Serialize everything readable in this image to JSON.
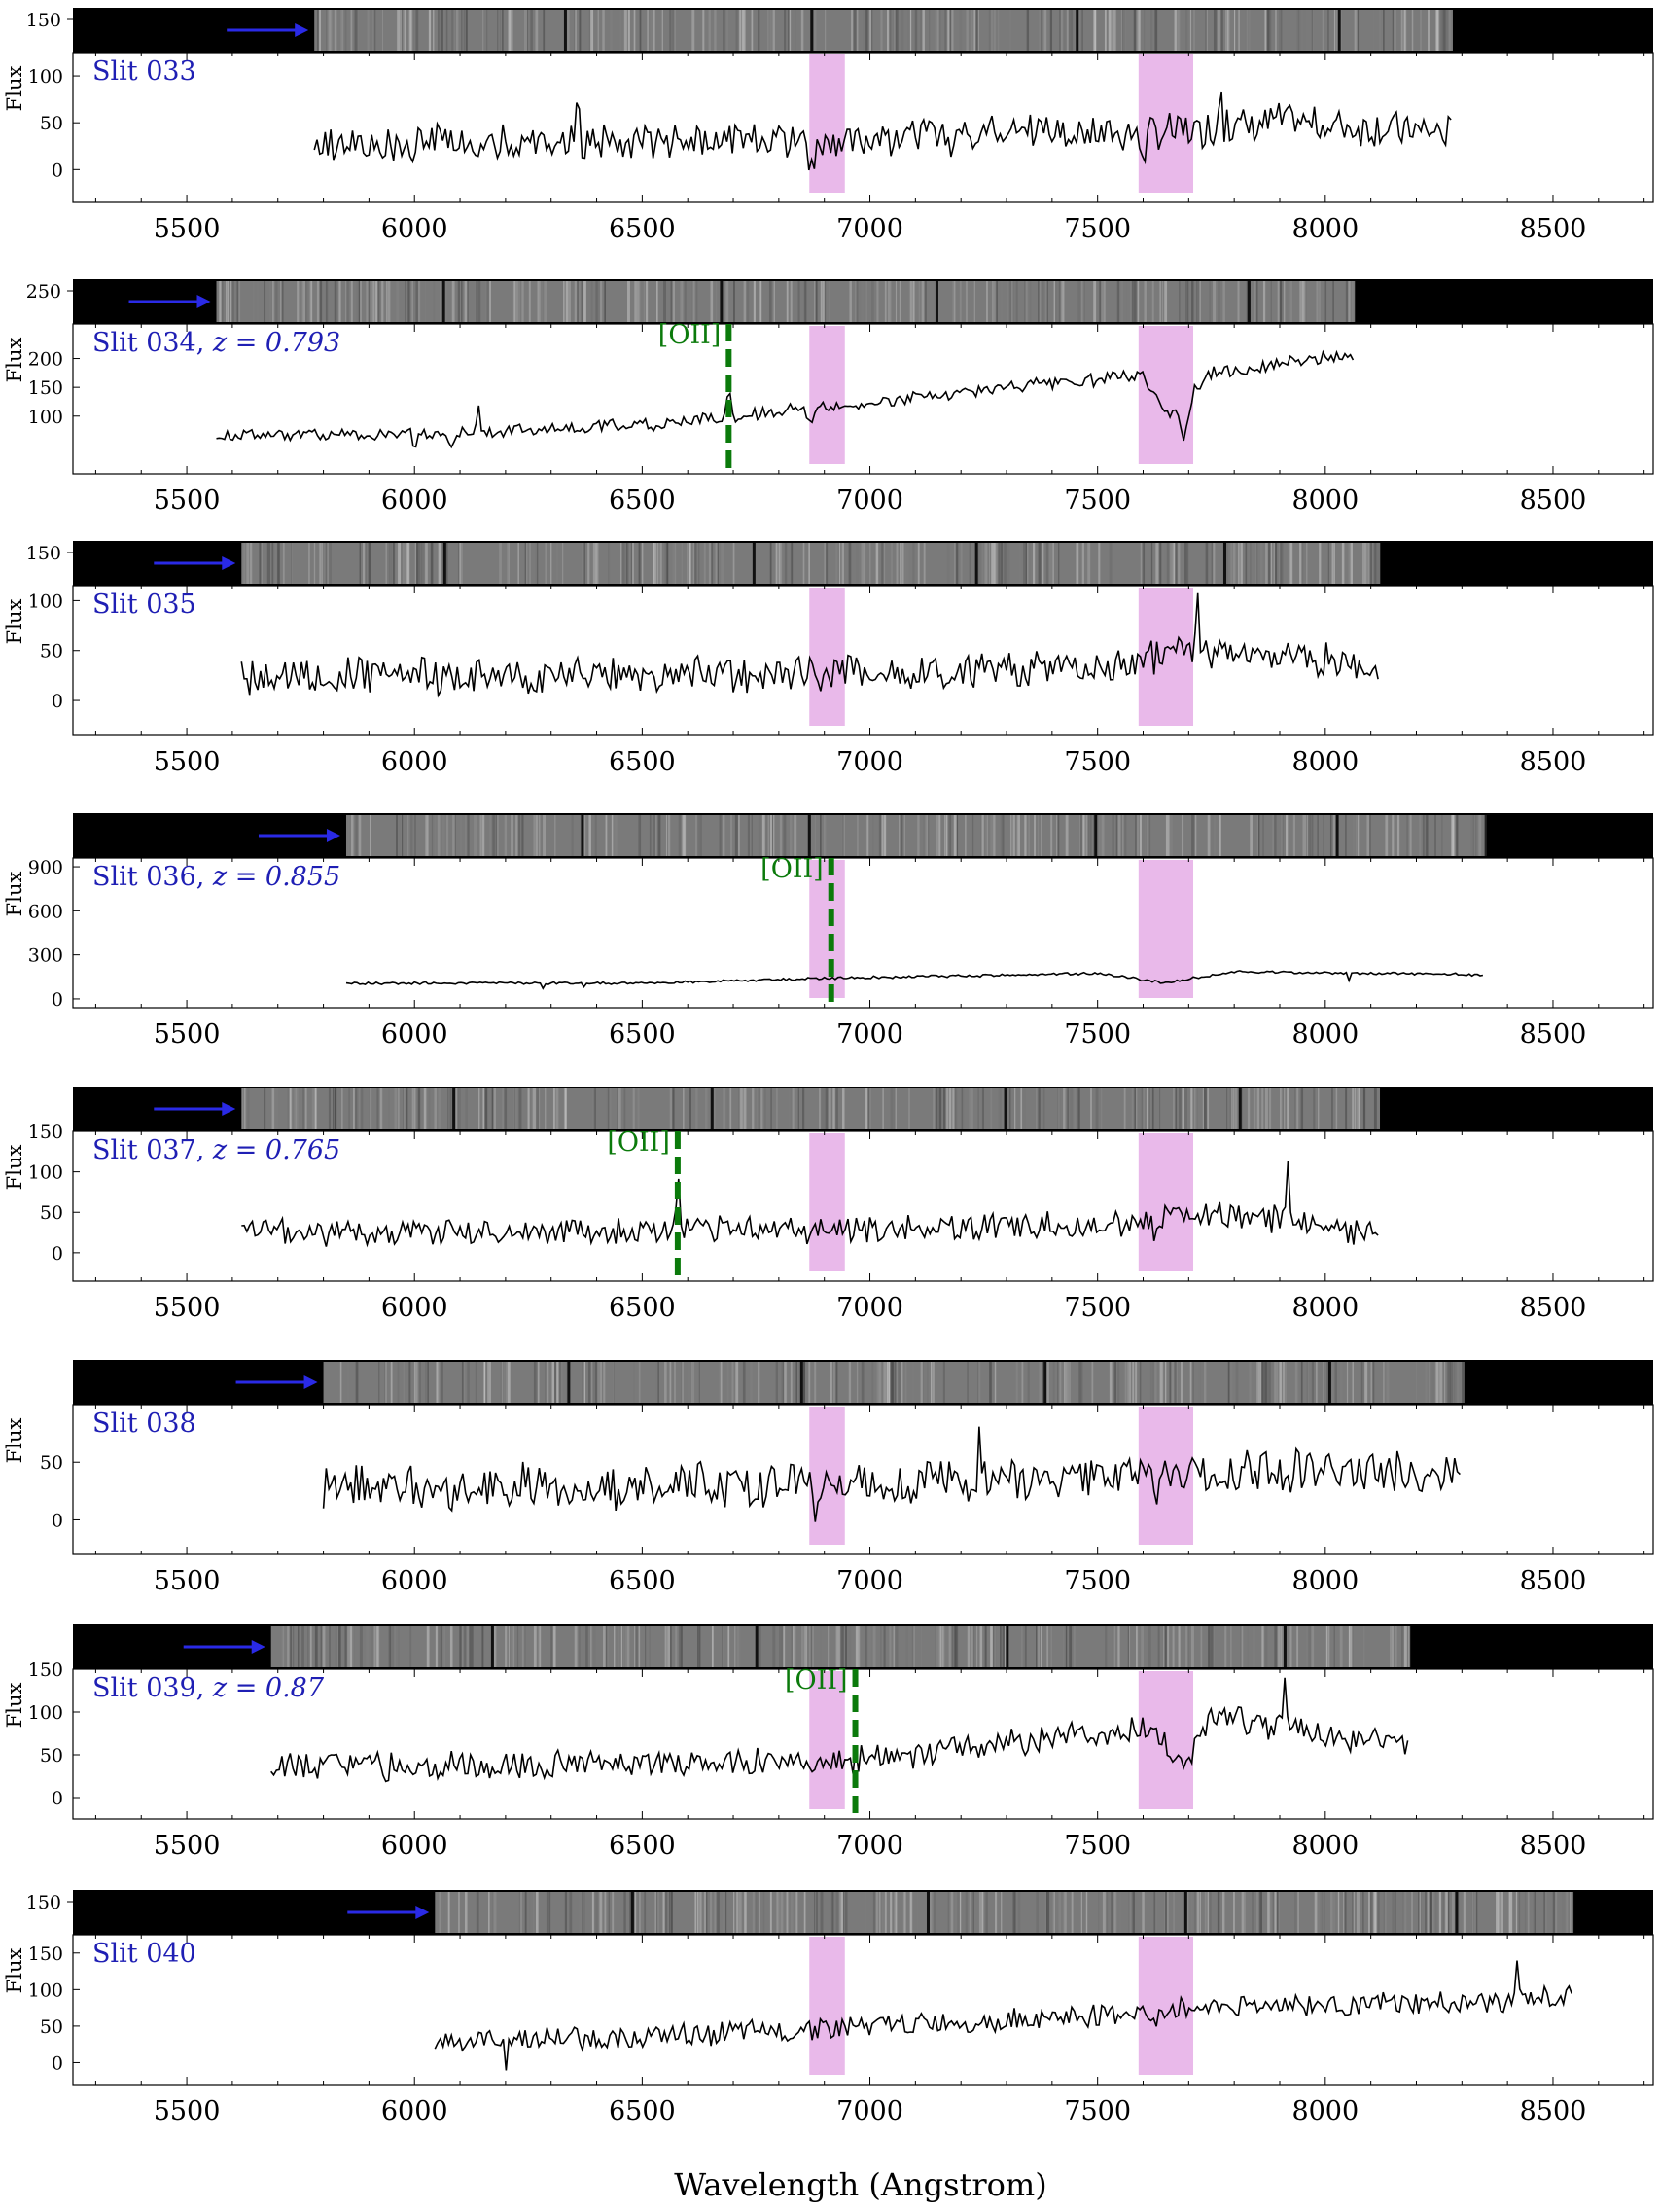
{
  "colors": {
    "slit_label": "#1f1fb4",
    "arrow": "#2a2ae6",
    "line_marker": "#0b7a0b",
    "absorption_band": "#e9b9ea",
    "spectrum": "#000000",
    "strip_background": "#000000",
    "strip_frame": "#7a7a7a"
  },
  "chart_data": {
    "type": "line",
    "xlabel": "Wavelength (Angstrom)",
    "ylabel": "Flux",
    "xlim": [
      5250,
      8720
    ],
    "xticks": [
      "5500",
      "6000",
      "6500",
      "7000",
      "7500",
      "8000",
      "8500"
    ],
    "xtick_values": [
      5500,
      6000,
      6500,
      7000,
      7500,
      8000,
      8500
    ],
    "shaded_bands": [
      [
        6867,
        6945
      ],
      [
        7590,
        7710
      ]
    ],
    "panels": [
      {
        "slit": "033",
        "label": "Slit 033",
        "z_label": "",
        "line_label": "",
        "line_wavelength": null,
        "ylim": [
          -35,
          125
        ],
        "yticks": [
          "0",
          "50",
          "100"
        ],
        "ytick_values": [
          0,
          50,
          100
        ],
        "strip_ticks": [
          "150"
        ],
        "wave_range": [
          5780,
          8280
        ],
        "seed": 33,
        "knots": [
          [
            5780,
            25
          ],
          [
            6300,
            30
          ],
          [
            6900,
            30
          ],
          [
            7400,
            40
          ],
          [
            7650,
            40
          ],
          [
            7900,
            52
          ],
          [
            8280,
            40
          ]
        ],
        "noise": 17,
        "features": [
          [
            6360,
            65,
            8
          ],
          [
            7770,
            55,
            8
          ],
          [
            6870,
            -25,
            15
          ],
          [
            7600,
            -20,
            20
          ],
          [
            5890,
            -30,
            7
          ]
        ]
      },
      {
        "slit": "034",
        "label": "Slit 034, ",
        "z_label": "z = 0.793",
        "line_label": "[OII]",
        "line_wavelength": 6690,
        "ylim": [
          0,
          260
        ],
        "yticks": [
          "100",
          "150",
          "200"
        ],
        "ytick_values": [
          100,
          150,
          200
        ],
        "strip_ticks": [
          "250"
        ],
        "wave_range": [
          5565,
          8065
        ],
        "seed": 34,
        "knots": [
          [
            5565,
            68
          ],
          [
            6000,
            68
          ],
          [
            6500,
            85
          ],
          [
            6900,
            115
          ],
          [
            7300,
            150
          ],
          [
            7600,
            170
          ],
          [
            7650,
            100
          ],
          [
            7750,
            175
          ],
          [
            8050,
            205
          ]
        ],
        "noise": 10,
        "features": [
          [
            6690,
            100,
            5
          ],
          [
            6140,
            50,
            7
          ],
          [
            7690,
            -70,
            20
          ],
          [
            6870,
            -25,
            15
          ],
          [
            6000,
            -25,
            8
          ],
          [
            6080,
            -25,
            8
          ]
        ]
      },
      {
        "slit": "035",
        "label": "Slit 035",
        "z_label": "",
        "line_label": "",
        "line_wavelength": null,
        "ylim": [
          -35,
          115
        ],
        "yticks": [
          "0",
          "50",
          "100"
        ],
        "ytick_values": [
          0,
          50,
          100
        ],
        "strip_ticks": [
          "150"
        ],
        "wave_range": [
          5620,
          8120
        ],
        "seed": 35,
        "knots": [
          [
            5620,
            25
          ],
          [
            6500,
            25
          ],
          [
            7000,
            28
          ],
          [
            7500,
            32
          ],
          [
            7700,
            50
          ],
          [
            8120,
            35
          ]
        ],
        "noise": 16,
        "features": [
          [
            7720,
            55,
            7
          ],
          [
            7500,
            35,
            7
          ],
          [
            6130,
            -25,
            7
          ]
        ]
      },
      {
        "slit": "036",
        "label": "Slit 036, ",
        "z_label": "z = 0.855",
        "line_label": "[OII]",
        "line_wavelength": 6915,
        "ylim": [
          -60,
          960
        ],
        "yticks": [
          "0",
          "300",
          "600",
          "900"
        ],
        "ytick_values": [
          0,
          300,
          600,
          900
        ],
        "strip_ticks": [],
        "wave_range": [
          5850,
          8350
        ],
        "seed": 36,
        "knots": [
          [
            5850,
            105
          ],
          [
            6500,
            108
          ],
          [
            6900,
            140
          ],
          [
            7500,
            175
          ],
          [
            7650,
            110
          ],
          [
            7800,
            185
          ],
          [
            8350,
            165
          ]
        ],
        "noise": 8,
        "features": [
          [
            6915,
            1000,
            3
          ],
          [
            6280,
            -80,
            4
          ],
          [
            6370,
            -60,
            4
          ],
          [
            8050,
            -90,
            4
          ]
        ]
      },
      {
        "slit": "037",
        "label": "Slit 037, ",
        "z_label": "z = 0.765",
        "line_label": "[OII]",
        "line_wavelength": 6578,
        "ylim": [
          -35,
          150
        ],
        "yticks": [
          "0",
          "50",
          "100",
          "150"
        ],
        "ytick_values": [
          0,
          50,
          100,
          150
        ],
        "strip_ticks": [],
        "wave_range": [
          5620,
          8120
        ],
        "seed": 37,
        "knots": [
          [
            5620,
            25
          ],
          [
            6500,
            28
          ],
          [
            7000,
            30
          ],
          [
            7500,
            35
          ],
          [
            7800,
            50
          ],
          [
            8100,
            20
          ]
        ],
        "noise": 15,
        "features": [
          [
            6578,
            110,
            5
          ],
          [
            7920,
            95,
            5
          ],
          [
            6870,
            -20,
            12
          ],
          [
            7630,
            -15,
            15
          ]
        ]
      },
      {
        "slit": "038",
        "label": "Slit 038",
        "z_label": "",
        "line_label": "",
        "line_wavelength": null,
        "ylim": [
          -30,
          100
        ],
        "yticks": [
          "0",
          "50"
        ],
        "ytick_values": [
          0,
          50
        ],
        "strip_ticks": [],
        "wave_range": [
          5800,
          8300
        ],
        "seed": 38,
        "knots": [
          [
            5800,
            28
          ],
          [
            6500,
            30
          ],
          [
            7000,
            32
          ],
          [
            7500,
            38
          ],
          [
            8000,
            45
          ],
          [
            8300,
            40
          ]
        ],
        "noise": 17,
        "features": [
          [
            7240,
            60,
            5
          ],
          [
            6880,
            -30,
            7
          ],
          [
            5800,
            -20,
            4
          ],
          [
            7630,
            -25,
            12
          ]
        ]
      },
      {
        "slit": "039",
        "label": "Slit 039, ",
        "z_label": "z = 0.87",
        "line_label": "[OII]",
        "line_wavelength": 6968,
        "ylim": [
          -25,
          150
        ],
        "yticks": [
          "0",
          "50",
          "100",
          "150"
        ],
        "ytick_values": [
          0,
          50,
          100,
          150
        ],
        "strip_ticks": [],
        "wave_range": [
          5685,
          8185
        ],
        "seed": 39,
        "knots": [
          [
            5685,
            35
          ],
          [
            6500,
            40
          ],
          [
            7000,
            45
          ],
          [
            7400,
            70
          ],
          [
            7600,
            80
          ],
          [
            7700,
            40
          ],
          [
            7750,
            95
          ],
          [
            8185,
            60
          ]
        ],
        "noise": 14,
        "features": [
          [
            6968,
            60,
            5
          ],
          [
            7910,
            70,
            6
          ],
          [
            6970,
            -45,
            8
          ],
          [
            6880,
            -25,
            8
          ]
        ]
      },
      {
        "slit": "040",
        "label": "Slit 040",
        "z_label": "",
        "line_label": "",
        "line_wavelength": null,
        "ylim": [
          -30,
          175
        ],
        "yticks": [
          "0",
          "50",
          "100",
          "150"
        ],
        "ytick_values": [
          0,
          50,
          100,
          150
        ],
        "strip_ticks": [
          "150"
        ],
        "wave_range": [
          6045,
          8545
        ],
        "seed": 40,
        "knots": [
          [
            6045,
            30
          ],
          [
            6500,
            35
          ],
          [
            7000,
            50
          ],
          [
            7500,
            65
          ],
          [
            7800,
            80
          ],
          [
            8300,
            80
          ],
          [
            8545,
            90
          ]
        ],
        "noise": 14,
        "features": [
          [
            8420,
            70,
            5
          ],
          [
            6200,
            -30,
            6
          ],
          [
            7620,
            -25,
            15
          ]
        ]
      }
    ]
  }
}
